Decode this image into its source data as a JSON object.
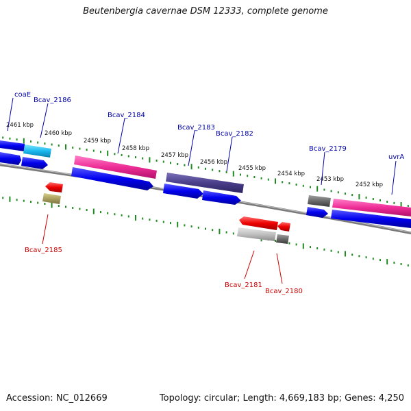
{
  "title": "Beutenbergia cavernae DSM 12333, complete genome",
  "accession_label": "Accession: NC_012669",
  "stats_label": "Topology: circular; Length: 4,669,183 bp; Genes: 4,250",
  "colors": {
    "backbone": "#7a7a7a",
    "tick": "#1f8a1f",
    "cds": "#0000ee",
    "forward_label": "#0000aa",
    "reverse_label": "#cc0000"
  },
  "kbp_ticks": [
    "2461 kbp",
    "2460 kbp",
    "2459 kbp",
    "2458 kbp",
    "2457 kbp",
    "2456 kbp",
    "2455 kbp",
    "2454 kbp",
    "2453 kbp",
    "2452 kbp"
  ],
  "forward_gene_labels": [
    "coaE",
    "Bcav_2186",
    "Bcav_2184",
    "Bcav_2183",
    "Bcav_2182",
    "Bcav_2179",
    "uvrA"
  ],
  "reverse_gene_labels": [
    "Bcav_2185",
    "Bcav_2181",
    "Bcav_2180"
  ]
}
